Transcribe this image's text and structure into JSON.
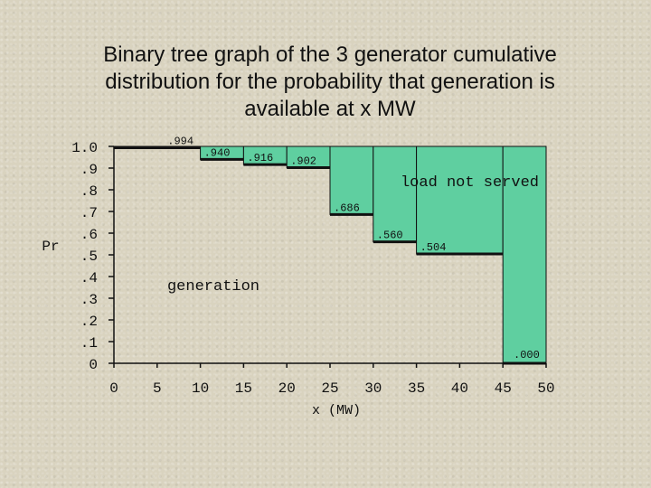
{
  "title_lines": [
    "Binary tree graph of the 3 generator cumulative",
    "distribution for the probability that generation is",
    "available at x MW"
  ],
  "colors": {
    "fill": "#5fcfa0",
    "line": "#111111",
    "background": "#d9d3bf"
  },
  "chart_data": {
    "type": "area",
    "title": "Binary tree graph of the 3 generator cumulative distribution for the probability that generation is available at x MW",
    "xlabel": "x  (MW)",
    "ylabel": "Pr",
    "xlim": [
      0,
      50
    ],
    "ylim": [
      0,
      1.0
    ],
    "x_ticks": [
      "0",
      "5",
      "10",
      "15",
      "20",
      "25",
      "30",
      "35",
      "40",
      "45",
      "50"
    ],
    "x_tick_values": [
      0,
      5,
      10,
      15,
      20,
      25,
      30,
      35,
      40,
      45,
      50
    ],
    "y_ticks": [
      "0",
      ".1",
      ".2",
      ".3",
      ".4",
      ".5",
      ".6",
      ".7",
      ".8",
      ".9",
      "1.0"
    ],
    "y_tick_values": [
      0,
      0.1,
      0.2,
      0.3,
      0.4,
      0.5,
      0.6,
      0.7,
      0.8,
      0.9,
      1.0
    ],
    "steps": [
      {
        "x0": 0,
        "x1": 10,
        "value": 0.994,
        "label": ".994"
      },
      {
        "x0": 10,
        "x1": 15,
        "value": 0.94,
        "label": ".940"
      },
      {
        "x0": 15,
        "x1": 20,
        "value": 0.916,
        "label": ".916"
      },
      {
        "x0": 20,
        "x1": 25,
        "value": 0.902,
        "label": ".902"
      },
      {
        "x0": 25,
        "x1": 30,
        "value": 0.686,
        "label": ".686"
      },
      {
        "x0": 30,
        "x1": 35,
        "value": 0.56,
        "label": ".560"
      },
      {
        "x0": 35,
        "x1": 45,
        "value": 0.504,
        "label": ".504"
      },
      {
        "x0": 45,
        "x1": 50,
        "value": 0.0,
        "label": ".000"
      }
    ],
    "annotations": {
      "upper": "load  not  served",
      "lower": "generation"
    }
  }
}
